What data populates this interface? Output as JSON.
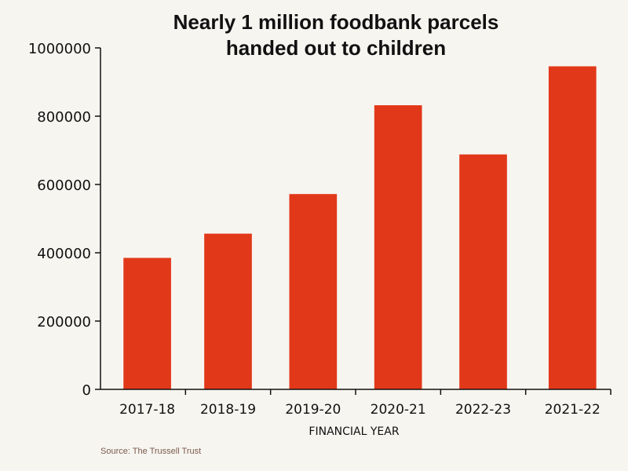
{
  "chart_data": {
    "type": "bar",
    "title_lines": [
      "Nearly 1 million foodbank parcels",
      "handed out to children"
    ],
    "categories": [
      "2017-18",
      "2018-19",
      "2019-20",
      "2020-21",
      "2022-23",
      "2021-22"
    ],
    "values": [
      385000,
      456000,
      572000,
      832000,
      688000,
      946000
    ],
    "xlabel": "FINANCIAL YEAR",
    "ylabel": "",
    "ylim": [
      0,
      1000000
    ],
    "yticks": [
      0,
      200000,
      400000,
      600000,
      800000,
      1000000
    ],
    "ytick_labels": [
      "0",
      "200000",
      "400000",
      "600000",
      "800000",
      "1000000"
    ],
    "grid": false,
    "legend": "none",
    "bar_color": "#e2381a",
    "source": "Source: The Trussell Trust"
  }
}
